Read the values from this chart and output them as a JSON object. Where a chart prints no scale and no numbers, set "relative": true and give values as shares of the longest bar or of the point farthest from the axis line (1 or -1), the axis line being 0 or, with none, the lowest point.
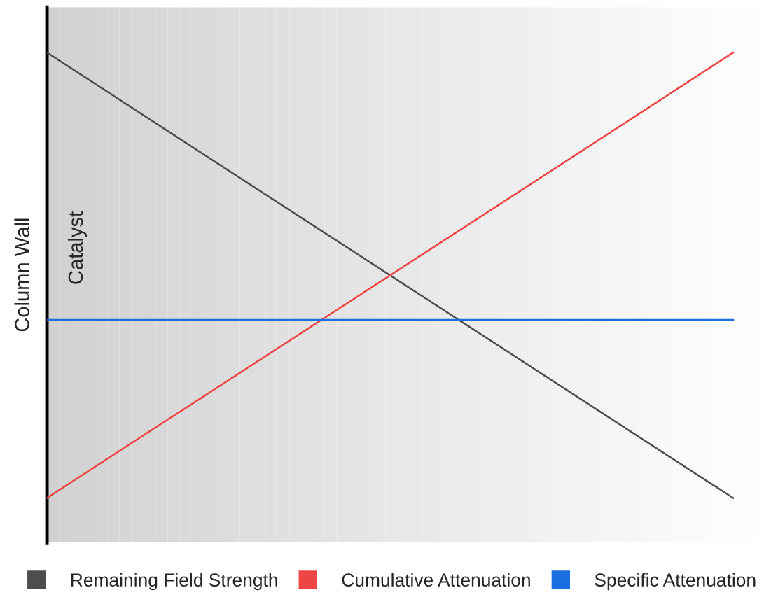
{
  "chart_data": {
    "type": "line",
    "relative": true,
    "ylabel": "Column Wall",
    "categories": [
      null,
      null
    ],
    "series": [
      {
        "name": "Remaining Field Strength",
        "color": "#4d4d4d",
        "values": [
          1,
          0
        ]
      },
      {
        "name": "Cumulative Attenuation",
        "color": "#ef4444",
        "values": [
          0,
          1
        ]
      },
      {
        "name": "Specific Attenuation",
        "color": "#1a6fe0",
        "values": [
          0.4,
          0.4
        ]
      }
    ],
    "annotations": [
      "Catalyst"
    ],
    "legend": "bottom",
    "marker": "none",
    "line_style": "solid"
  }
}
